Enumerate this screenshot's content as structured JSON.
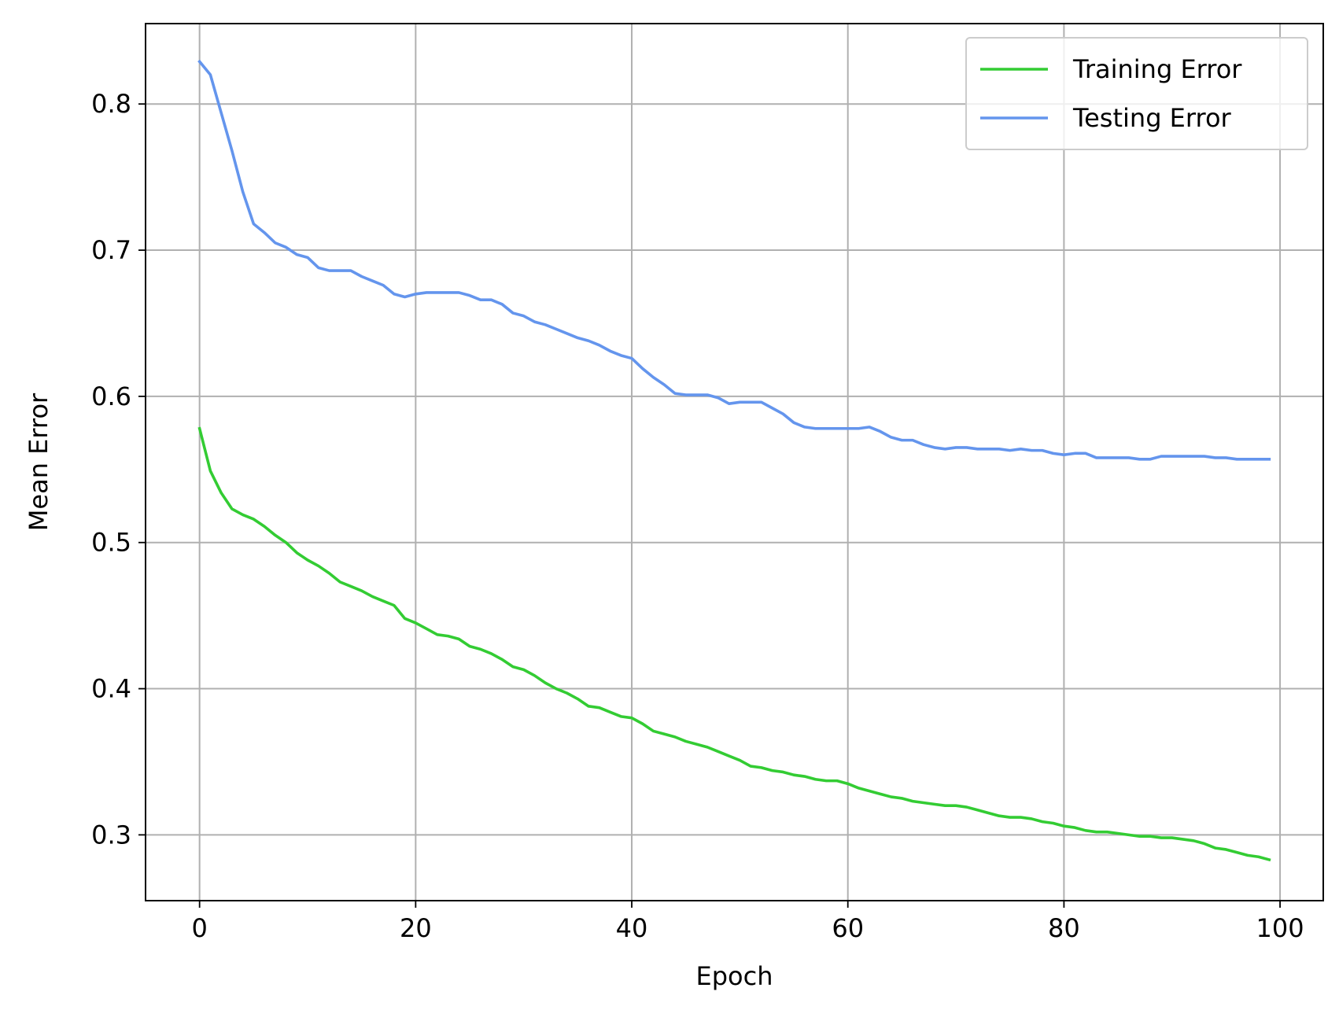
{
  "chart_data": {
    "type": "line",
    "title": "",
    "xlabel": "Epoch",
    "ylabel": "Mean Error",
    "xlim": [
      -5,
      104
    ],
    "ylim": [
      0.255,
      0.855
    ],
    "xticks": [
      0,
      20,
      40,
      60,
      80,
      100
    ],
    "yticks": [
      0.3,
      0.4,
      0.5,
      0.6,
      0.7,
      0.8
    ],
    "grid": true,
    "legend": "top-right",
    "series": [
      {
        "name": "Training Error",
        "color": "#33cc33",
        "x": [
          0,
          1,
          2,
          3,
          4,
          5,
          6,
          7,
          8,
          9,
          10,
          11,
          12,
          13,
          14,
          15,
          16,
          17,
          18,
          19,
          20,
          21,
          22,
          23,
          24,
          25,
          26,
          27,
          28,
          29,
          30,
          31,
          32,
          33,
          34,
          35,
          36,
          37,
          38,
          39,
          40,
          41,
          42,
          43,
          44,
          45,
          46,
          47,
          48,
          49,
          50,
          51,
          52,
          53,
          54,
          55,
          56,
          57,
          58,
          59,
          60,
          61,
          62,
          63,
          64,
          65,
          66,
          67,
          68,
          69,
          70,
          71,
          72,
          73,
          74,
          75,
          76,
          77,
          78,
          79,
          80,
          81,
          82,
          83,
          84,
          85,
          86,
          87,
          88,
          89,
          90,
          91,
          92,
          93,
          94,
          95,
          96,
          97,
          98,
          99
        ],
        "values": [
          0.578,
          0.549,
          0.534,
          0.523,
          0.519,
          0.516,
          0.511,
          0.505,
          0.5,
          0.493,
          0.488,
          0.484,
          0.479,
          0.473,
          0.47,
          0.467,
          0.463,
          0.46,
          0.457,
          0.448,
          0.445,
          0.441,
          0.437,
          0.436,
          0.434,
          0.429,
          0.427,
          0.424,
          0.42,
          0.415,
          0.413,
          0.409,
          0.404,
          0.4,
          0.397,
          0.393,
          0.388,
          0.387,
          0.384,
          0.381,
          0.38,
          0.376,
          0.371,
          0.369,
          0.367,
          0.364,
          0.362,
          0.36,
          0.357,
          0.354,
          0.351,
          0.347,
          0.346,
          0.344,
          0.343,
          0.341,
          0.34,
          0.338,
          0.337,
          0.337,
          0.335,
          0.332,
          0.33,
          0.328,
          0.326,
          0.325,
          0.323,
          0.322,
          0.321,
          0.32,
          0.32,
          0.319,
          0.317,
          0.315,
          0.313,
          0.312,
          0.312,
          0.311,
          0.309,
          0.308,
          0.306,
          0.305,
          0.303,
          0.302,
          0.302,
          0.301,
          0.3,
          0.299,
          0.299,
          0.298,
          0.298,
          0.297,
          0.296,
          0.294,
          0.291,
          0.29,
          0.288,
          0.286,
          0.285,
          0.283
        ]
      },
      {
        "name": "Testing Error",
        "color": "#6495ed",
        "x": [
          0,
          1,
          2,
          3,
          4,
          5,
          6,
          7,
          8,
          9,
          10,
          11,
          12,
          13,
          14,
          15,
          16,
          17,
          18,
          19,
          20,
          21,
          22,
          23,
          24,
          25,
          26,
          27,
          28,
          29,
          30,
          31,
          32,
          33,
          34,
          35,
          36,
          37,
          38,
          39,
          40,
          41,
          42,
          43,
          44,
          45,
          46,
          47,
          48,
          49,
          50,
          51,
          52,
          53,
          54,
          55,
          56,
          57,
          58,
          59,
          60,
          61,
          62,
          63,
          64,
          65,
          66,
          67,
          68,
          69,
          70,
          71,
          72,
          73,
          74,
          75,
          76,
          77,
          78,
          79,
          80,
          81,
          82,
          83,
          84,
          85,
          86,
          87,
          88,
          89,
          90,
          91,
          92,
          93,
          94,
          95,
          96,
          97,
          98,
          99
        ],
        "values": [
          0.829,
          0.82,
          0.794,
          0.768,
          0.74,
          0.718,
          0.712,
          0.705,
          0.702,
          0.697,
          0.695,
          0.688,
          0.686,
          0.686,
          0.686,
          0.682,
          0.679,
          0.676,
          0.67,
          0.668,
          0.67,
          0.671,
          0.671,
          0.671,
          0.671,
          0.669,
          0.666,
          0.666,
          0.663,
          0.657,
          0.655,
          0.651,
          0.649,
          0.646,
          0.643,
          0.64,
          0.638,
          0.635,
          0.631,
          0.628,
          0.626,
          0.619,
          0.613,
          0.608,
          0.602,
          0.601,
          0.601,
          0.601,
          0.599,
          0.595,
          0.596,
          0.596,
          0.596,
          0.592,
          0.588,
          0.582,
          0.579,
          0.578,
          0.578,
          0.578,
          0.578,
          0.578,
          0.579,
          0.576,
          0.572,
          0.57,
          0.57,
          0.567,
          0.565,
          0.564,
          0.565,
          0.565,
          0.564,
          0.564,
          0.564,
          0.563,
          0.564,
          0.563,
          0.563,
          0.561,
          0.56,
          0.561,
          0.561,
          0.558,
          0.558,
          0.558,
          0.558,
          0.557,
          0.557,
          0.559,
          0.559,
          0.559,
          0.559,
          0.559,
          0.558,
          0.558,
          0.557,
          0.557,
          0.557,
          0.557
        ]
      }
    ]
  }
}
